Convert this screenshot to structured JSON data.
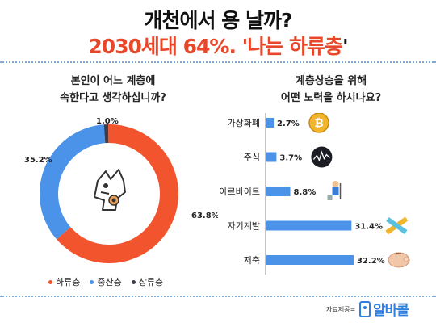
{
  "title": {
    "line1": "개천에서 용 날까?",
    "line2_main": "2030세대 64%. '나는 하류층",
    "line2_end": "'"
  },
  "left_question": {
    "line1": "본인이 어느 계층에",
    "line2": "속한다고 생각하십니까?"
  },
  "right_question": {
    "line1": "계층상승을 위해",
    "line2": "어떤 노력을 하시나요?"
  },
  "source": {
    "label": "자료제공=",
    "logo_text": "알바콜"
  },
  "colors": {
    "orange": "#f2552e",
    "blue": "#4a93e8",
    "dark": "#3a3d4a",
    "bar": "#4a93e8",
    "title_accent": "#e8472a"
  },
  "chart_data": [
    {
      "type": "pie",
      "style": "donut",
      "categories": [
        "하류층",
        "중산층",
        "상류층"
      ],
      "values": [
        63.8,
        35.2,
        1.0
      ],
      "value_labels": [
        "63.8%",
        "35.2%",
        "1.0%"
      ],
      "colors": [
        "#f2552e",
        "#4a93e8",
        "#3a3d4a"
      ],
      "legend_position": "bottom",
      "center_icon": "dragon-icon"
    },
    {
      "type": "bar",
      "orientation": "horizontal",
      "categories": [
        "가상화폐",
        "주식",
        "아르바이트",
        "자기계발",
        "저축"
      ],
      "values": [
        2.7,
        3.7,
        8.8,
        31.4,
        32.2
      ],
      "value_labels": [
        "2.7%",
        "3.7%",
        "8.8%",
        "31.4%",
        "32.2%"
      ],
      "icons": [
        "bitcoin-icon",
        "stock-chart-icon",
        "worker-icon",
        "pencil-ruler-icon",
        "piggy-bank-icon"
      ],
      "xlim": [
        0,
        32.2
      ]
    }
  ]
}
